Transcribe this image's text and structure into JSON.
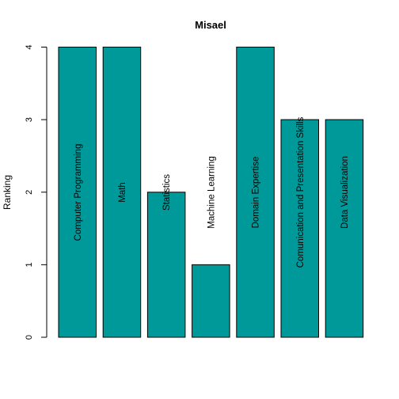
{
  "chart_data": {
    "type": "bar",
    "title": "Misael",
    "xlabel": "",
    "ylabel": "Ranking",
    "categories": [
      "Computer Programming",
      "Math",
      "Statistics",
      "Machine Learning",
      "Domain Expertise",
      "Comunication and Presentation Skills",
      "Data Visualization"
    ],
    "values": [
      4,
      4,
      2,
      1,
      4,
      3,
      3
    ],
    "ylim": [
      0,
      4
    ],
    "yticks": [
      0,
      1,
      2,
      3,
      4
    ],
    "grid": false,
    "bar_color": "#009999",
    "bar_border_color": "#000000"
  }
}
